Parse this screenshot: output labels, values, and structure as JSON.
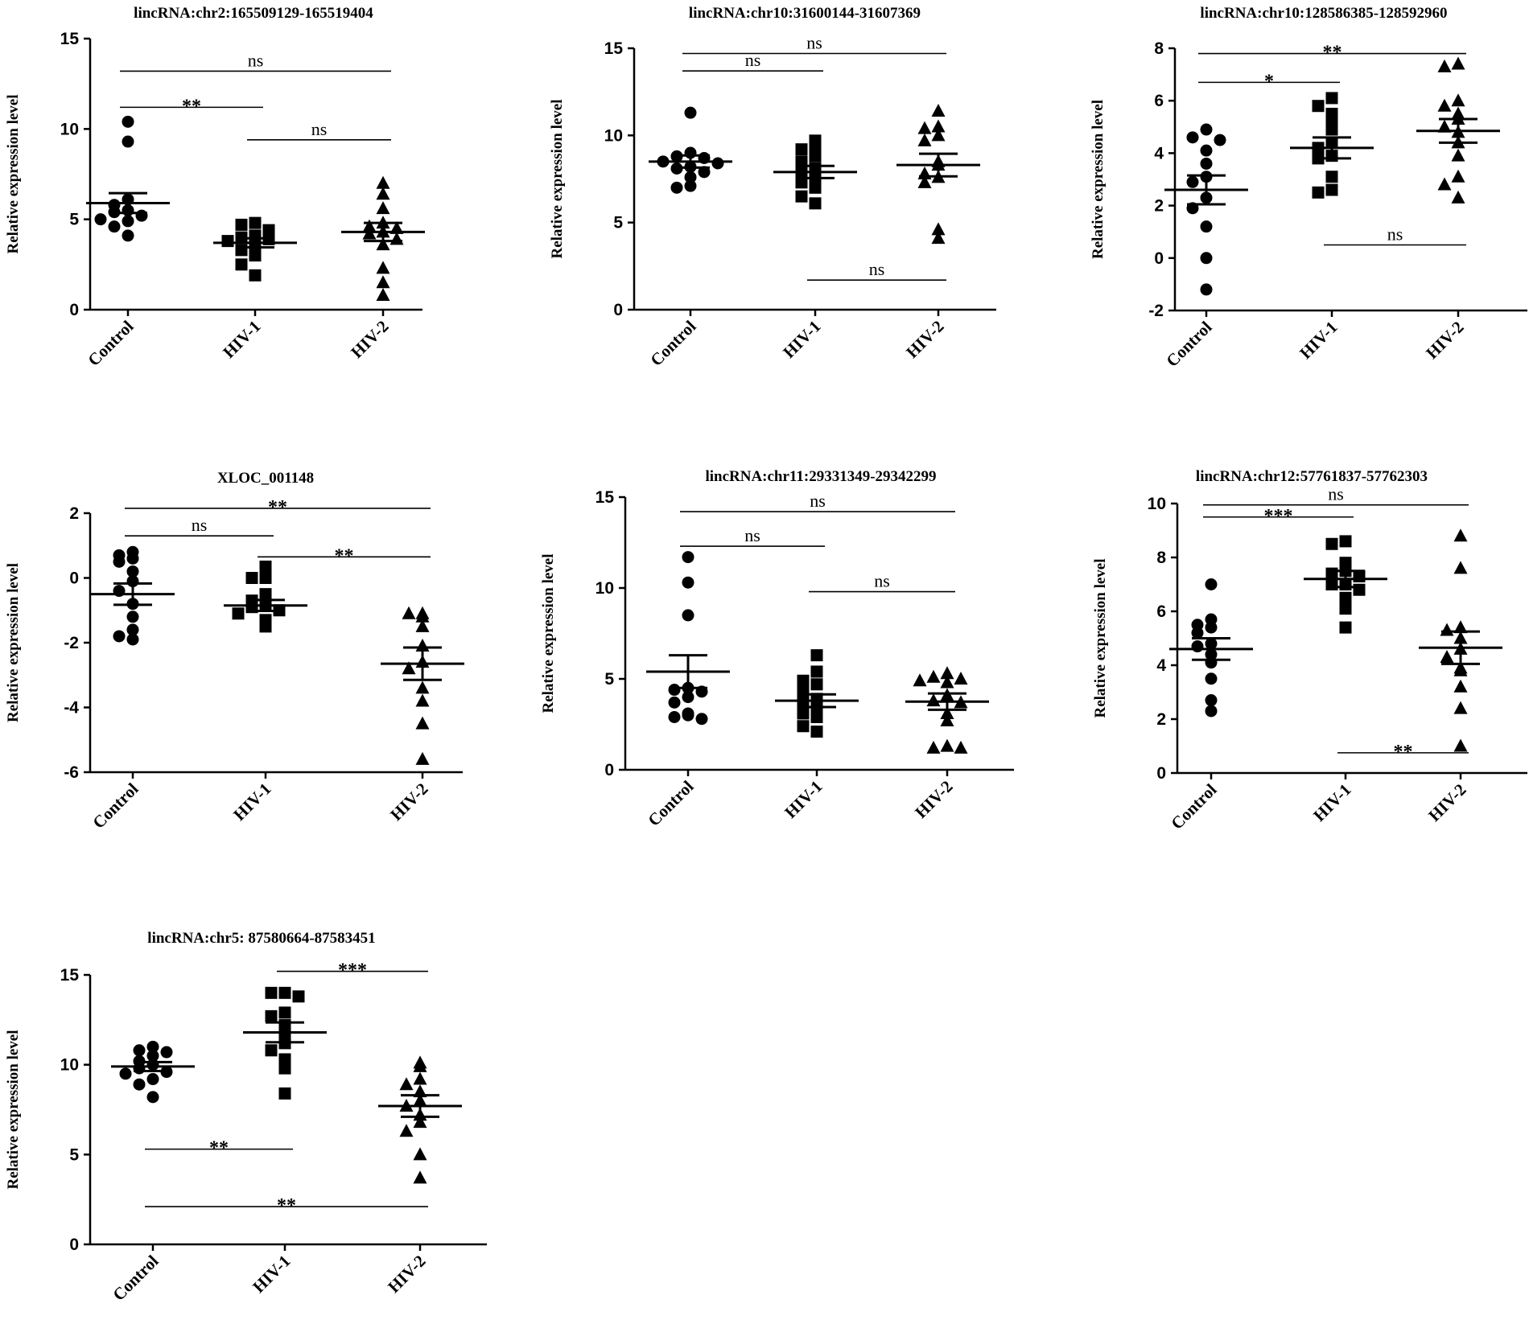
{
  "chart_data": [
    {
      "type": "scatter",
      "title": "lincRNA:chr2:165509129-165519404",
      "xlabel": "",
      "ylabel": "Relative expression level",
      "categories": [
        "Control",
        "HIV-1",
        "HIV-2"
      ],
      "ylim": [
        0,
        15
      ],
      "yticks": [
        0,
        5,
        10,
        15
      ],
      "grid": false,
      "legend": "none",
      "series": [
        {
          "marker": "circle",
          "values": [
            10.4,
            9.3,
            6.1,
            5.8,
            5.5,
            5.4,
            5.2,
            5.0,
            4.9,
            4.6,
            4.1
          ],
          "mean": 5.9,
          "sem": 0.55
        },
        {
          "marker": "square",
          "values": [
            4.8,
            4.7,
            4.4,
            4.1,
            4.0,
            3.9,
            3.8,
            3.5,
            3.3,
            3.0,
            2.5,
            1.9
          ],
          "mean": 3.7,
          "sem": 0.25
        },
        {
          "marker": "triangle",
          "values": [
            7.0,
            6.4,
            5.6,
            4.8,
            4.6,
            4.5,
            4.3,
            4.2,
            3.9,
            3.6,
            2.3,
            1.5,
            0.8
          ],
          "mean": 4.3,
          "sem": 0.5
        }
      ],
      "comparisons": [
        {
          "from": "Control",
          "to": "HIV-1",
          "label": "**",
          "y": 11.2
        },
        {
          "from": "Control",
          "to": "HIV-2",
          "label": "ns",
          "y": 13.2
        },
        {
          "from": "HIV-1",
          "to": "HIV-2",
          "label": "ns",
          "y": 9.4
        }
      ]
    },
    {
      "type": "scatter",
      "title": "lincRNA:chr10:31600144-31607369",
      "xlabel": "",
      "ylabel": "Relative expression level",
      "categories": [
        "Control",
        "HIV-1",
        "HIV-2"
      ],
      "ylim": [
        0,
        15
      ],
      "yticks": [
        0,
        5,
        10,
        15
      ],
      "grid": false,
      "legend": "none",
      "series": [
        {
          "marker": "circle",
          "values": [
            11.3,
            9.0,
            8.8,
            8.7,
            8.5,
            8.4,
            8.2,
            8.1,
            7.9,
            7.6,
            7.1,
            7.0
          ],
          "mean": 8.5,
          "sem": 0.35
        },
        {
          "marker": "square",
          "values": [
            9.7,
            9.3,
            9.2,
            8.8,
            8.5,
            8.1,
            7.9,
            7.6,
            7.3,
            7.0,
            6.5,
            6.1
          ],
          "mean": 7.9,
          "sem": 0.35
        },
        {
          "marker": "triangle",
          "values": [
            11.4,
            10.5,
            10.4,
            10.0,
            9.7,
            8.5,
            8.3,
            7.8,
            7.6,
            7.3,
            4.6,
            4.1
          ],
          "mean": 8.3,
          "sem": 0.65
        }
      ],
      "comparisons": [
        {
          "from": "Control",
          "to": "HIV-1",
          "label": "ns",
          "y": 13.7
        },
        {
          "from": "Control",
          "to": "HIV-2",
          "label": "ns",
          "y": 14.7
        },
        {
          "from": "HIV-1",
          "to": "HIV-2",
          "label": "ns",
          "y": 1.7
        }
      ]
    },
    {
      "type": "scatter",
      "title": "lincRNA:chr10:128586385-128592960",
      "xlabel": "",
      "ylabel": "Relative expression level",
      "categories": [
        "Control",
        "HIV-1",
        "HIV-2"
      ],
      "ylim": [
        -2,
        8
      ],
      "yticks": [
        -2,
        0,
        2,
        4,
        6,
        8
      ],
      "grid": false,
      "legend": "none",
      "series": [
        {
          "marker": "circle",
          "values": [
            4.9,
            4.6,
            4.5,
            4.1,
            3.6,
            3.1,
            2.9,
            2.3,
            1.9,
            1.2,
            0.0,
            -1.2
          ],
          "mean": 2.6,
          "sem": 0.55
        },
        {
          "marker": "square",
          "values": [
            6.1,
            5.8,
            5.5,
            5.2,
            4.9,
            4.4,
            4.2,
            3.9,
            3.8,
            3.1,
            2.6,
            2.5
          ],
          "mean": 4.2,
          "sem": 0.4
        },
        {
          "marker": "triangle",
          "values": [
            7.4,
            7.3,
            6.0,
            5.8,
            5.5,
            5.3,
            5.0,
            4.8,
            4.4,
            3.9,
            3.1,
            2.8,
            2.3
          ],
          "mean": 4.85,
          "sem": 0.45
        }
      ],
      "comparisons": [
        {
          "from": "Control",
          "to": "HIV-1",
          "label": "*",
          "y": 6.7
        },
        {
          "from": "Control",
          "to": "HIV-2",
          "label": "**",
          "y": 7.8
        },
        {
          "from": "HIV-1",
          "to": "HIV-2",
          "label": "ns",
          "y": 0.5
        }
      ]
    },
    {
      "type": "scatter",
      "title": "XLOC_001148",
      "xlabel": "",
      "ylabel": "Relative expression level",
      "categories": [
        "Control",
        "HIV-1",
        "HIV-2"
      ],
      "ylim": [
        -6,
        2
      ],
      "yticks": [
        -6,
        -4,
        -2,
        0,
        2
      ],
      "grid": false,
      "legend": "none",
      "series": [
        {
          "marker": "circle",
          "values": [
            0.8,
            0.7,
            0.6,
            0.5,
            0.2,
            -0.1,
            -0.4,
            -0.8,
            -1.2,
            -1.6,
            -1.8,
            -1.9
          ],
          "mean": -0.5,
          "sem": 0.33
        },
        {
          "marker": "square",
          "values": [
            0.35,
            0.0,
            0.0,
            -0.5,
            -0.7,
            -0.8,
            -0.9,
            -1.0,
            -1.1,
            -1.3,
            -1.5
          ],
          "mean": -0.85,
          "sem": 0.17
        },
        {
          "marker": "triangle",
          "values": [
            -1.1,
            -1.1,
            -1.2,
            -1.5,
            -2.1,
            -2.6,
            -2.8,
            -3.4,
            -3.8,
            -4.5,
            -5.6
          ],
          "mean": -2.65,
          "sem": 0.5
        }
      ],
      "comparisons": [
        {
          "from": "Control",
          "to": "HIV-1",
          "label": "ns",
          "y": 1.3
        },
        {
          "from": "Control",
          "to": "HIV-2",
          "label": "**",
          "y": 2.15
        },
        {
          "from": "HIV-1",
          "to": "HIV-2",
          "label": "**",
          "y": 0.65
        }
      ]
    },
    {
      "type": "scatter",
      "title": "lincRNA:chr11:29331349-29342299",
      "xlabel": "",
      "ylabel": "Relative expression level",
      "categories": [
        "Control",
        "HIV-1",
        "HIV-2"
      ],
      "ylim": [
        0,
        15
      ],
      "yticks": [
        0,
        5,
        10,
        15
      ],
      "grid": false,
      "legend": "none",
      "series": [
        {
          "marker": "circle",
          "values": [
            11.7,
            10.3,
            8.5,
            4.5,
            4.4,
            4.3,
            4.0,
            3.7,
            3.1,
            3.0,
            2.9,
            2.8
          ],
          "mean": 5.4,
          "sem": 0.9
        },
        {
          "marker": "square",
          "values": [
            6.3,
            5.4,
            4.9,
            4.7,
            4.3,
            3.9,
            3.7,
            3.5,
            3.1,
            2.9,
            2.4,
            2.1
          ],
          "mean": 3.8,
          "sem": 0.35
        },
        {
          "marker": "triangle",
          "values": [
            5.3,
            5.1,
            5.0,
            4.9,
            4.8,
            4.1,
            3.8,
            3.7,
            3.1,
            2.7,
            1.3,
            1.2,
            1.2
          ],
          "mean": 3.75,
          "sem": 0.45
        }
      ],
      "comparisons": [
        {
          "from": "Control",
          "to": "HIV-1",
          "label": "ns",
          "y": 12.3
        },
        {
          "from": "Control",
          "to": "HIV-2",
          "label": "ns",
          "y": 14.2
        },
        {
          "from": "HIV-1",
          "to": "HIV-2",
          "label": "ns",
          "y": 9.8
        }
      ]
    },
    {
      "type": "scatter",
      "title": "lincRNA:chr12:57761837-57762303",
      "xlabel": "",
      "ylabel": "Relative expression level",
      "categories": [
        "Control",
        "HIV-1",
        "HIV-2"
      ],
      "ylim": [
        0,
        10
      ],
      "yticks": [
        0,
        2,
        4,
        6,
        8,
        10
      ],
      "grid": false,
      "legend": "none",
      "series": [
        {
          "marker": "circle",
          "values": [
            7.0,
            5.7,
            5.5,
            5.4,
            5.2,
            4.8,
            4.7,
            4.4,
            4.1,
            3.5,
            2.7,
            2.3
          ],
          "mean": 4.6,
          "sem": 0.4
        },
        {
          "marker": "square",
          "values": [
            8.6,
            8.5,
            7.8,
            7.5,
            7.4,
            7.3,
            7.0,
            7.0,
            6.8,
            6.5,
            6.1,
            5.4
          ],
          "mean": 7.2,
          "sem": 0.3
        },
        {
          "marker": "triangle",
          "values": [
            8.8,
            7.6,
            5.4,
            5.3,
            5.0,
            4.6,
            4.3,
            3.9,
            3.8,
            3.2,
            2.4,
            1.0
          ],
          "mean": 4.65,
          "sem": 0.6
        }
      ],
      "comparisons": [
        {
          "from": "Control",
          "to": "HIV-1",
          "label": "***",
          "y": 9.5
        },
        {
          "from": "Control",
          "to": "HIV-2",
          "label": "ns",
          "y": 9.95
        },
        {
          "from": "HIV-1",
          "to": "HIV-2",
          "label": "**",
          "y": 0.75
        }
      ]
    },
    {
      "type": "scatter",
      "title": "lincRNA:chr5: 87580664-87583451",
      "xlabel": "",
      "ylabel": "Relative expression level",
      "categories": [
        "Control",
        "HIV-1",
        "HIV-2"
      ],
      "ylim": [
        0,
        15
      ],
      "yticks": [
        0,
        5,
        10,
        15
      ],
      "grid": false,
      "legend": "none",
      "series": [
        {
          "marker": "circle",
          "values": [
            11.0,
            10.8,
            10.7,
            10.5,
            10.2,
            10.0,
            9.8,
            9.6,
            9.5,
            9.2,
            8.9,
            8.2
          ],
          "mean": 9.9,
          "sem": 0.25
        },
        {
          "marker": "square",
          "values": [
            14.0,
            14.0,
            13.8,
            12.9,
            12.7,
            12.2,
            11.6,
            11.2,
            10.8,
            10.3,
            9.8,
            8.4
          ],
          "mean": 11.8,
          "sem": 0.55
        },
        {
          "marker": "triangle",
          "values": [
            10.1,
            9.9,
            9.2,
            8.9,
            8.5,
            8.0,
            7.7,
            7.2,
            6.8,
            6.3,
            5.0,
            3.7
          ],
          "mean": 7.7,
          "sem": 0.6
        }
      ],
      "comparisons": [
        {
          "from": "Control",
          "to": "HIV-1",
          "label": "**",
          "y": 5.3
        },
        {
          "from": "Control",
          "to": "HIV-2",
          "label": "**",
          "y": 2.1
        },
        {
          "from": "HIV-1",
          "to": "HIV-2",
          "label": "***",
          "y": 15.2
        }
      ]
    }
  ]
}
